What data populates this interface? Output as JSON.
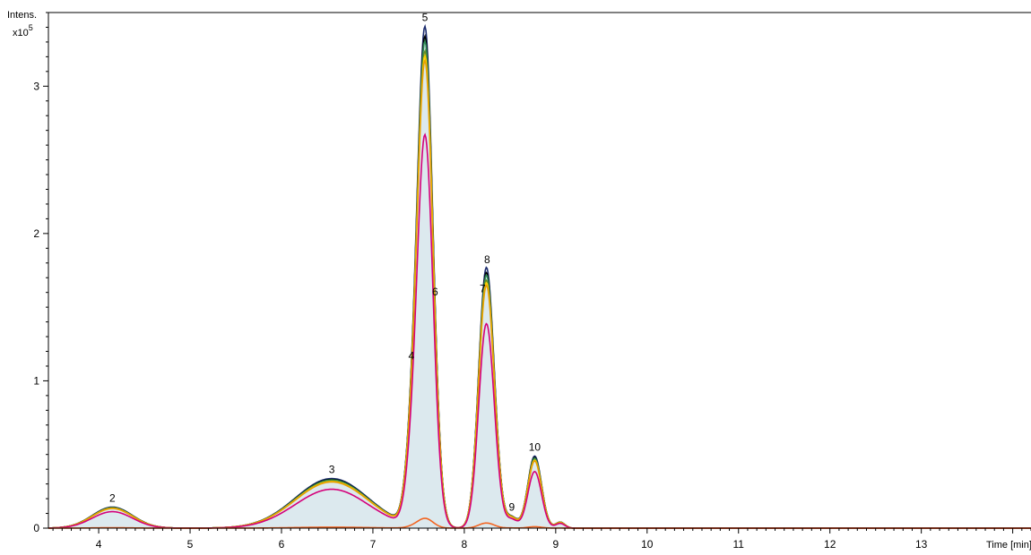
{
  "chart_data": {
    "type": "line",
    "title": "",
    "ylabel": "Intens.",
    "yscale_label": "x10",
    "yscale_exponent": "5",
    "xlabel": "Time [min]",
    "xlim": [
      3.45,
      14.2
    ],
    "ylim": [
      0,
      3.5
    ],
    "x_ticks": [
      4,
      5,
      6,
      7,
      8,
      9,
      10,
      11,
      12,
      13
    ],
    "y_ticks": [
      0,
      1,
      2,
      3
    ],
    "grid": false,
    "legend": "none",
    "fill_color": "#dce9ee",
    "series": [
      {
        "color": "#1a2a6c",
        "scale": 1.02
      },
      {
        "color": "#000000",
        "scale": 1.0
      },
      {
        "color": "#2e8b57",
        "scale": 0.99
      },
      {
        "color": "#6a8f1f",
        "scale": 0.97
      },
      {
        "color": "#ffd000",
        "scale": 0.96
      },
      {
        "color": "#e8a000",
        "scale": 0.95
      },
      {
        "color": "#d4007a",
        "scale": 0.8
      },
      {
        "color": "#f26522",
        "scale": 0.02
      }
    ],
    "peaks": [
      {
        "label": "2",
        "x": 4.15,
        "y": 0.14,
        "sigma": 0.22
      },
      {
        "label": "3",
        "x": 6.55,
        "y": 0.33,
        "sigma": 0.4
      },
      {
        "label": "4",
        "x": 7.42,
        "y": 0.37,
        "sigma": 0.07
      },
      {
        "label": "5",
        "x": 7.57,
        "y": 3.25,
        "sigma": 0.085
      },
      {
        "label": "6",
        "x": 7.68,
        "y": 0.1,
        "sigma": 0.08
      },
      {
        "label": "7",
        "x": 8.2,
        "y": 0.23,
        "sigma": 0.07
      },
      {
        "label": "8",
        "x": 8.25,
        "y": 1.55,
        "sigma": 0.085
      },
      {
        "label": "9",
        "x": 8.52,
        "y": 0.07,
        "sigma": 0.06
      },
      {
        "label": "10",
        "x": 8.77,
        "y": 0.48,
        "sigma": 0.075
      },
      {
        "label": "",
        "x": 9.05,
        "y": 0.04,
        "sigma": 0.05
      }
    ]
  }
}
